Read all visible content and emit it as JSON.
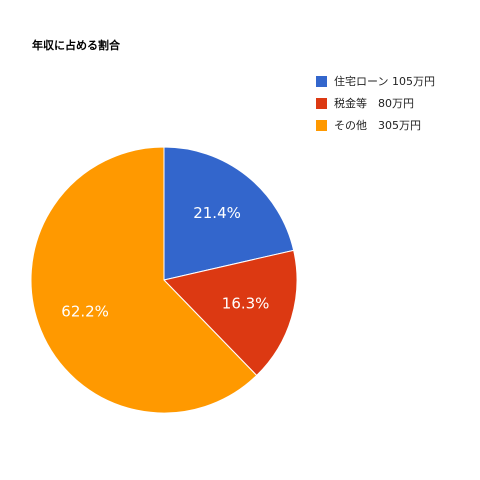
{
  "chart_data": {
    "type": "pie",
    "title": "年収に占める割合",
    "legend_position": "top-right",
    "slices": [
      {
        "label": "住宅ローン 105万円",
        "value": 21.4,
        "display": "21.4%",
        "color": "#3366cc"
      },
      {
        "label": "税金等　80万円",
        "value": 16.3,
        "display": "16.3%",
        "color": "#dc3912"
      },
      {
        "label": "その他　305万円",
        "value": 62.2,
        "display": "62.2%",
        "color": "#ff9900"
      }
    ]
  }
}
